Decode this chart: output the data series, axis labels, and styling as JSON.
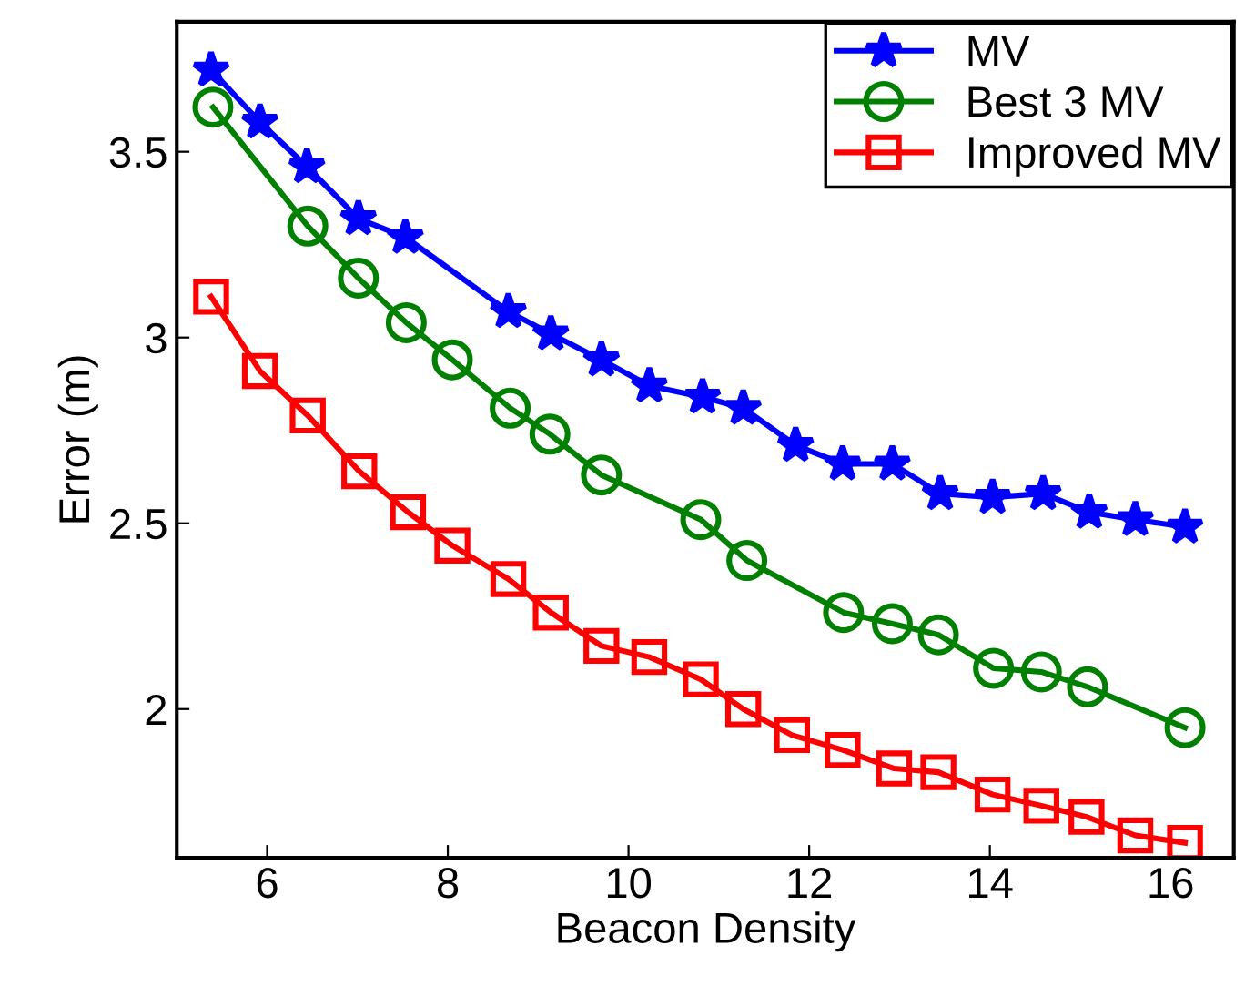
{
  "chart_data": {
    "type": "line",
    "xlabel": "Beacon Density",
    "ylabel": "Error (m)",
    "xlim": [
      5,
      16.7
    ],
    "ylim": [
      1.6,
      3.85
    ],
    "xticks": [
      6,
      8,
      10,
      12,
      14,
      16
    ],
    "yticks": [
      2,
      2.5,
      3,
      3.5
    ],
    "grid": false,
    "legend": "top right",
    "line_style": "solid",
    "series": [
      {
        "name": "MV",
        "color": "#0000ff",
        "marker": "star",
        "x": [
          5.38,
          5.92,
          6.44,
          7.01,
          7.53,
          8.67,
          9.14,
          9.7,
          10.23,
          10.82,
          11.27,
          11.85,
          12.37,
          12.92,
          13.45,
          14.03,
          14.59,
          15.1,
          15.61,
          16.16
        ],
        "values": [
          3.72,
          3.58,
          3.46,
          3.32,
          3.27,
          3.07,
          3.01,
          2.94,
          2.87,
          2.84,
          2.81,
          2.71,
          2.66,
          2.66,
          2.58,
          2.57,
          2.58,
          2.53,
          2.51,
          2.49
        ]
      },
      {
        "name": "Best 3 MV",
        "color": "#008000",
        "marker": "circle",
        "x": [
          5.4,
          6.45,
          7.01,
          7.54,
          8.05,
          8.69,
          9.13,
          9.7,
          10.8,
          11.31,
          12.38,
          12.92,
          13.43,
          14.04,
          14.57,
          15.08,
          16.16
        ],
        "values": [
          3.62,
          3.3,
          3.16,
          3.04,
          2.94,
          2.81,
          2.74,
          2.63,
          2.51,
          2.4,
          2.26,
          2.23,
          2.2,
          2.11,
          2.1,
          2.06,
          1.95
        ]
      },
      {
        "name": "Improved MV",
        "color": "#ff0000",
        "marker": "square",
        "x": [
          5.38,
          5.92,
          6.45,
          7.02,
          7.56,
          8.05,
          8.67,
          9.14,
          9.7,
          10.23,
          10.8,
          11.27,
          11.81,
          12.37,
          12.94,
          13.43,
          14.03,
          14.57,
          15.07,
          15.61,
          16.16
        ],
        "values": [
          3.11,
          2.91,
          2.79,
          2.64,
          2.53,
          2.44,
          2.35,
          2.26,
          2.17,
          2.14,
          2.08,
          2.0,
          1.93,
          1.89,
          1.84,
          1.83,
          1.77,
          1.74,
          1.71,
          1.66,
          1.64
        ]
      }
    ]
  }
}
